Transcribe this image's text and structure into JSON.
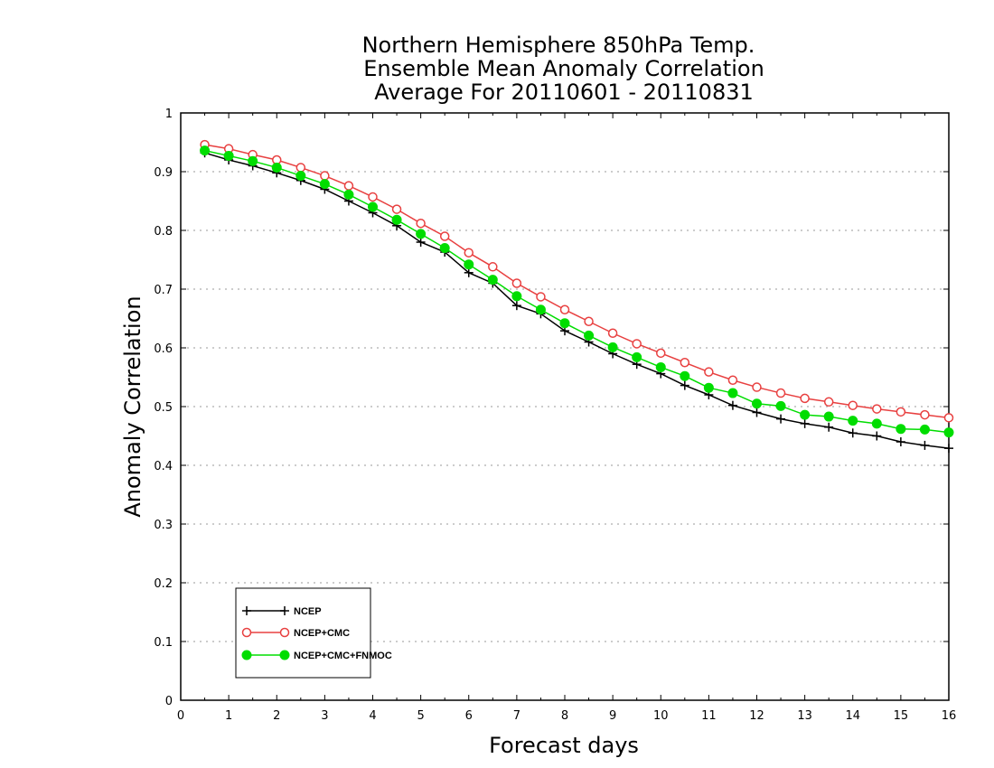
{
  "chart_data": {
    "type": "line",
    "title_lines": [
      "Northern Hemisphere 850hPa Temp.",
      "Ensemble Mean Anomaly Correlation",
      "Average For 20110601 - 20110831"
    ],
    "xlabel": "Forecast days",
    "ylabel": "Anomaly Correlation",
    "xlim": [
      0,
      16
    ],
    "ylim": [
      0,
      1
    ],
    "x_ticks": [
      0,
      1,
      2,
      3,
      4,
      5,
      6,
      7,
      8,
      9,
      10,
      11,
      12,
      13,
      14,
      15,
      16
    ],
    "y_ticks": [
      0,
      0.1,
      0.2,
      0.3,
      0.4,
      0.5,
      0.6,
      0.7,
      0.8,
      0.9,
      1
    ],
    "y_tick_labels": [
      "0",
      "0.1",
      "0.2",
      "0.3",
      "0.4",
      "0.5",
      "0.6",
      "0.7",
      "0.8",
      "0.9",
      "1"
    ],
    "grid": "horizontal dotted",
    "legend_position": "bottom-left",
    "x": [
      0.5,
      1,
      1.5,
      2,
      2.5,
      3,
      3.5,
      4,
      4.5,
      5,
      5.5,
      6,
      6.5,
      7,
      7.5,
      8,
      8.5,
      9,
      9.5,
      10,
      10.5,
      11,
      11.5,
      12,
      12.5,
      13,
      13.5,
      14,
      14.5,
      15,
      15.5,
      16
    ],
    "series": [
      {
        "name": "NCEP",
        "color": "#000000",
        "marker": "plus",
        "values": [
          0.932,
          0.92,
          0.91,
          0.898,
          0.885,
          0.87,
          0.85,
          0.83,
          0.808,
          0.78,
          0.763,
          0.728,
          0.71,
          0.672,
          0.658,
          0.629,
          0.61,
          0.59,
          0.572,
          0.556,
          0.536,
          0.52,
          0.502,
          0.49,
          0.479,
          0.471,
          0.465,
          0.455,
          0.45,
          0.44,
          0.434,
          0.429
        ]
      },
      {
        "name": "NCEP+CMC",
        "color": "#e84040",
        "marker": "open-circle",
        "values": [
          0.946,
          0.939,
          0.929,
          0.92,
          0.907,
          0.893,
          0.876,
          0.857,
          0.836,
          0.812,
          0.79,
          0.762,
          0.738,
          0.71,
          0.687,
          0.665,
          0.645,
          0.625,
          0.607,
          0.591,
          0.575,
          0.559,
          0.545,
          0.533,
          0.523,
          0.514,
          0.508,
          0.502,
          0.496,
          0.491,
          0.486,
          0.481
        ]
      },
      {
        "name": "NCEP+CMC+FNMOC",
        "color": "#00dd00",
        "marker": "filled-circle",
        "values": [
          0.936,
          0.927,
          0.918,
          0.907,
          0.893,
          0.879,
          0.861,
          0.84,
          0.818,
          0.794,
          0.77,
          0.742,
          0.716,
          0.688,
          0.665,
          0.642,
          0.621,
          0.601,
          0.584,
          0.567,
          0.552,
          0.532,
          0.523,
          0.505,
          0.501,
          0.486,
          0.483,
          0.476,
          0.471,
          0.462,
          0.461,
          0.456
        ]
      }
    ]
  }
}
